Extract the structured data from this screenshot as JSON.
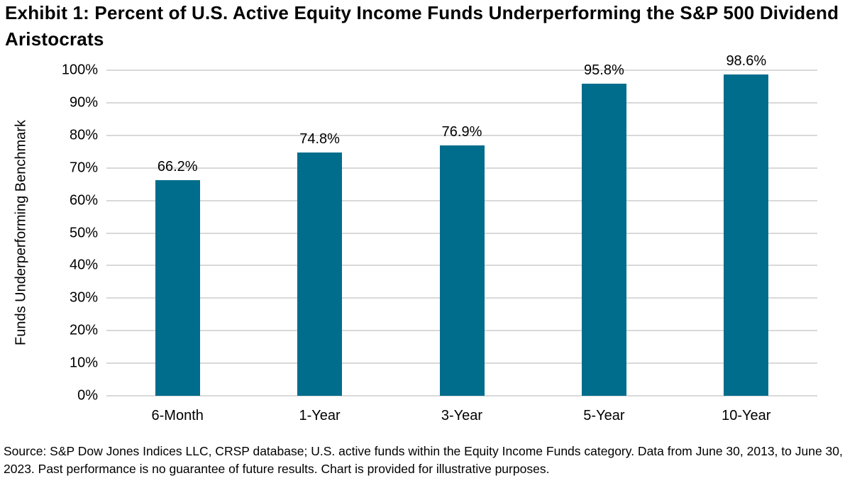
{
  "page": {
    "title": "Exhibit 1: Percent of U.S. Active Equity Income Funds Underperforming the S&P 500 Dividend Aristocrats",
    "source_note": "Source: S&P Dow Jones Indices LLC, CRSP database; U.S. active funds within the Equity Income Funds category. Data from June 30, 2013, to June 30, 2023. Past performance is no guarantee of future results. Chart is provided for illustrative purposes."
  },
  "chart_data": {
    "type": "bar",
    "categories": [
      "6-Month",
      "1-Year",
      "3-Year",
      "5-Year",
      "10-Year"
    ],
    "values": [
      66.2,
      74.8,
      76.9,
      95.8,
      98.6
    ],
    "value_labels": [
      "66.2%",
      "74.8%",
      "76.9%",
      "95.8%",
      "98.6%"
    ],
    "title": "",
    "xlabel": "",
    "ylabel": "Funds Underperforming Benchmark",
    "ylim": [
      0,
      100
    ],
    "yticks": [
      0,
      10,
      20,
      30,
      40,
      50,
      60,
      70,
      80,
      90,
      100
    ],
    "ytick_labels": [
      "0%",
      "10%",
      "20%",
      "30%",
      "40%",
      "50%",
      "60%",
      "70%",
      "80%",
      "90%",
      "100%"
    ],
    "grid": "horizontal",
    "legend": "none",
    "bar_color": "#006D8C",
    "gridline_color": "#D9D9D9",
    "text_color": "#000000"
  }
}
